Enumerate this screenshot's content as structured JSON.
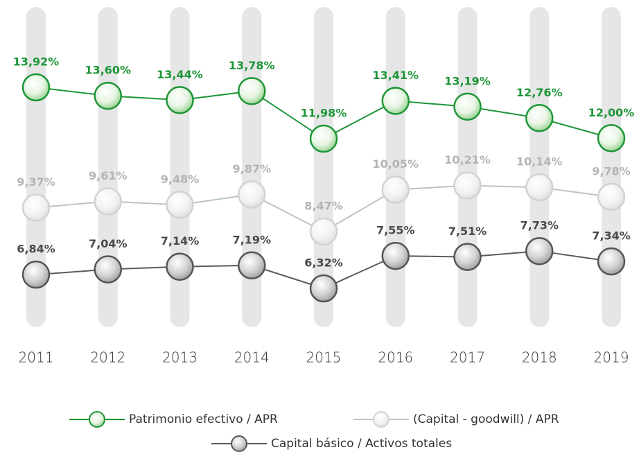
{
  "chart_data": {
    "type": "line",
    "categories": [
      "2011",
      "2012",
      "2013",
      "2014",
      "2015",
      "2016",
      "2017",
      "2018",
      "2019"
    ],
    "series": [
      {
        "name": "Patrimonio efectivo / APR",
        "color": "#1e9638",
        "values": [
          13.92,
          13.6,
          13.44,
          13.78,
          11.98,
          13.41,
          13.19,
          12.76,
          12.0
        ],
        "value_labels": [
          "13,92%",
          "13,60%",
          "13,44%",
          "13,78%",
          "11,98%",
          "13,41%",
          "13,19%",
          "12,76%",
          "12,00%"
        ]
      },
      {
        "name": "(Capital - goodwill) / APR",
        "color": "#b4b4b4",
        "values": [
          9.37,
          9.61,
          9.48,
          9.87,
          8.47,
          10.05,
          10.21,
          10.14,
          9.78
        ],
        "value_labels": [
          "9,37%",
          "9,61%",
          "9,48%",
          "9,87%",
          "8,47%",
          "10,05%",
          "10,21%",
          "10,14%",
          "9,78%"
        ]
      },
      {
        "name": "Capital básico / Activos totales",
        "color": "#4a4a4a",
        "values": [
          6.84,
          7.04,
          7.14,
          7.19,
          6.32,
          7.55,
          7.51,
          7.73,
          7.34
        ],
        "value_labels": [
          "6,84%",
          "7,04%",
          "7,14%",
          "7,19%",
          "6,32%",
          "7,55%",
          "7,51%",
          "7,73%",
          "7,34%"
        ]
      }
    ]
  }
}
